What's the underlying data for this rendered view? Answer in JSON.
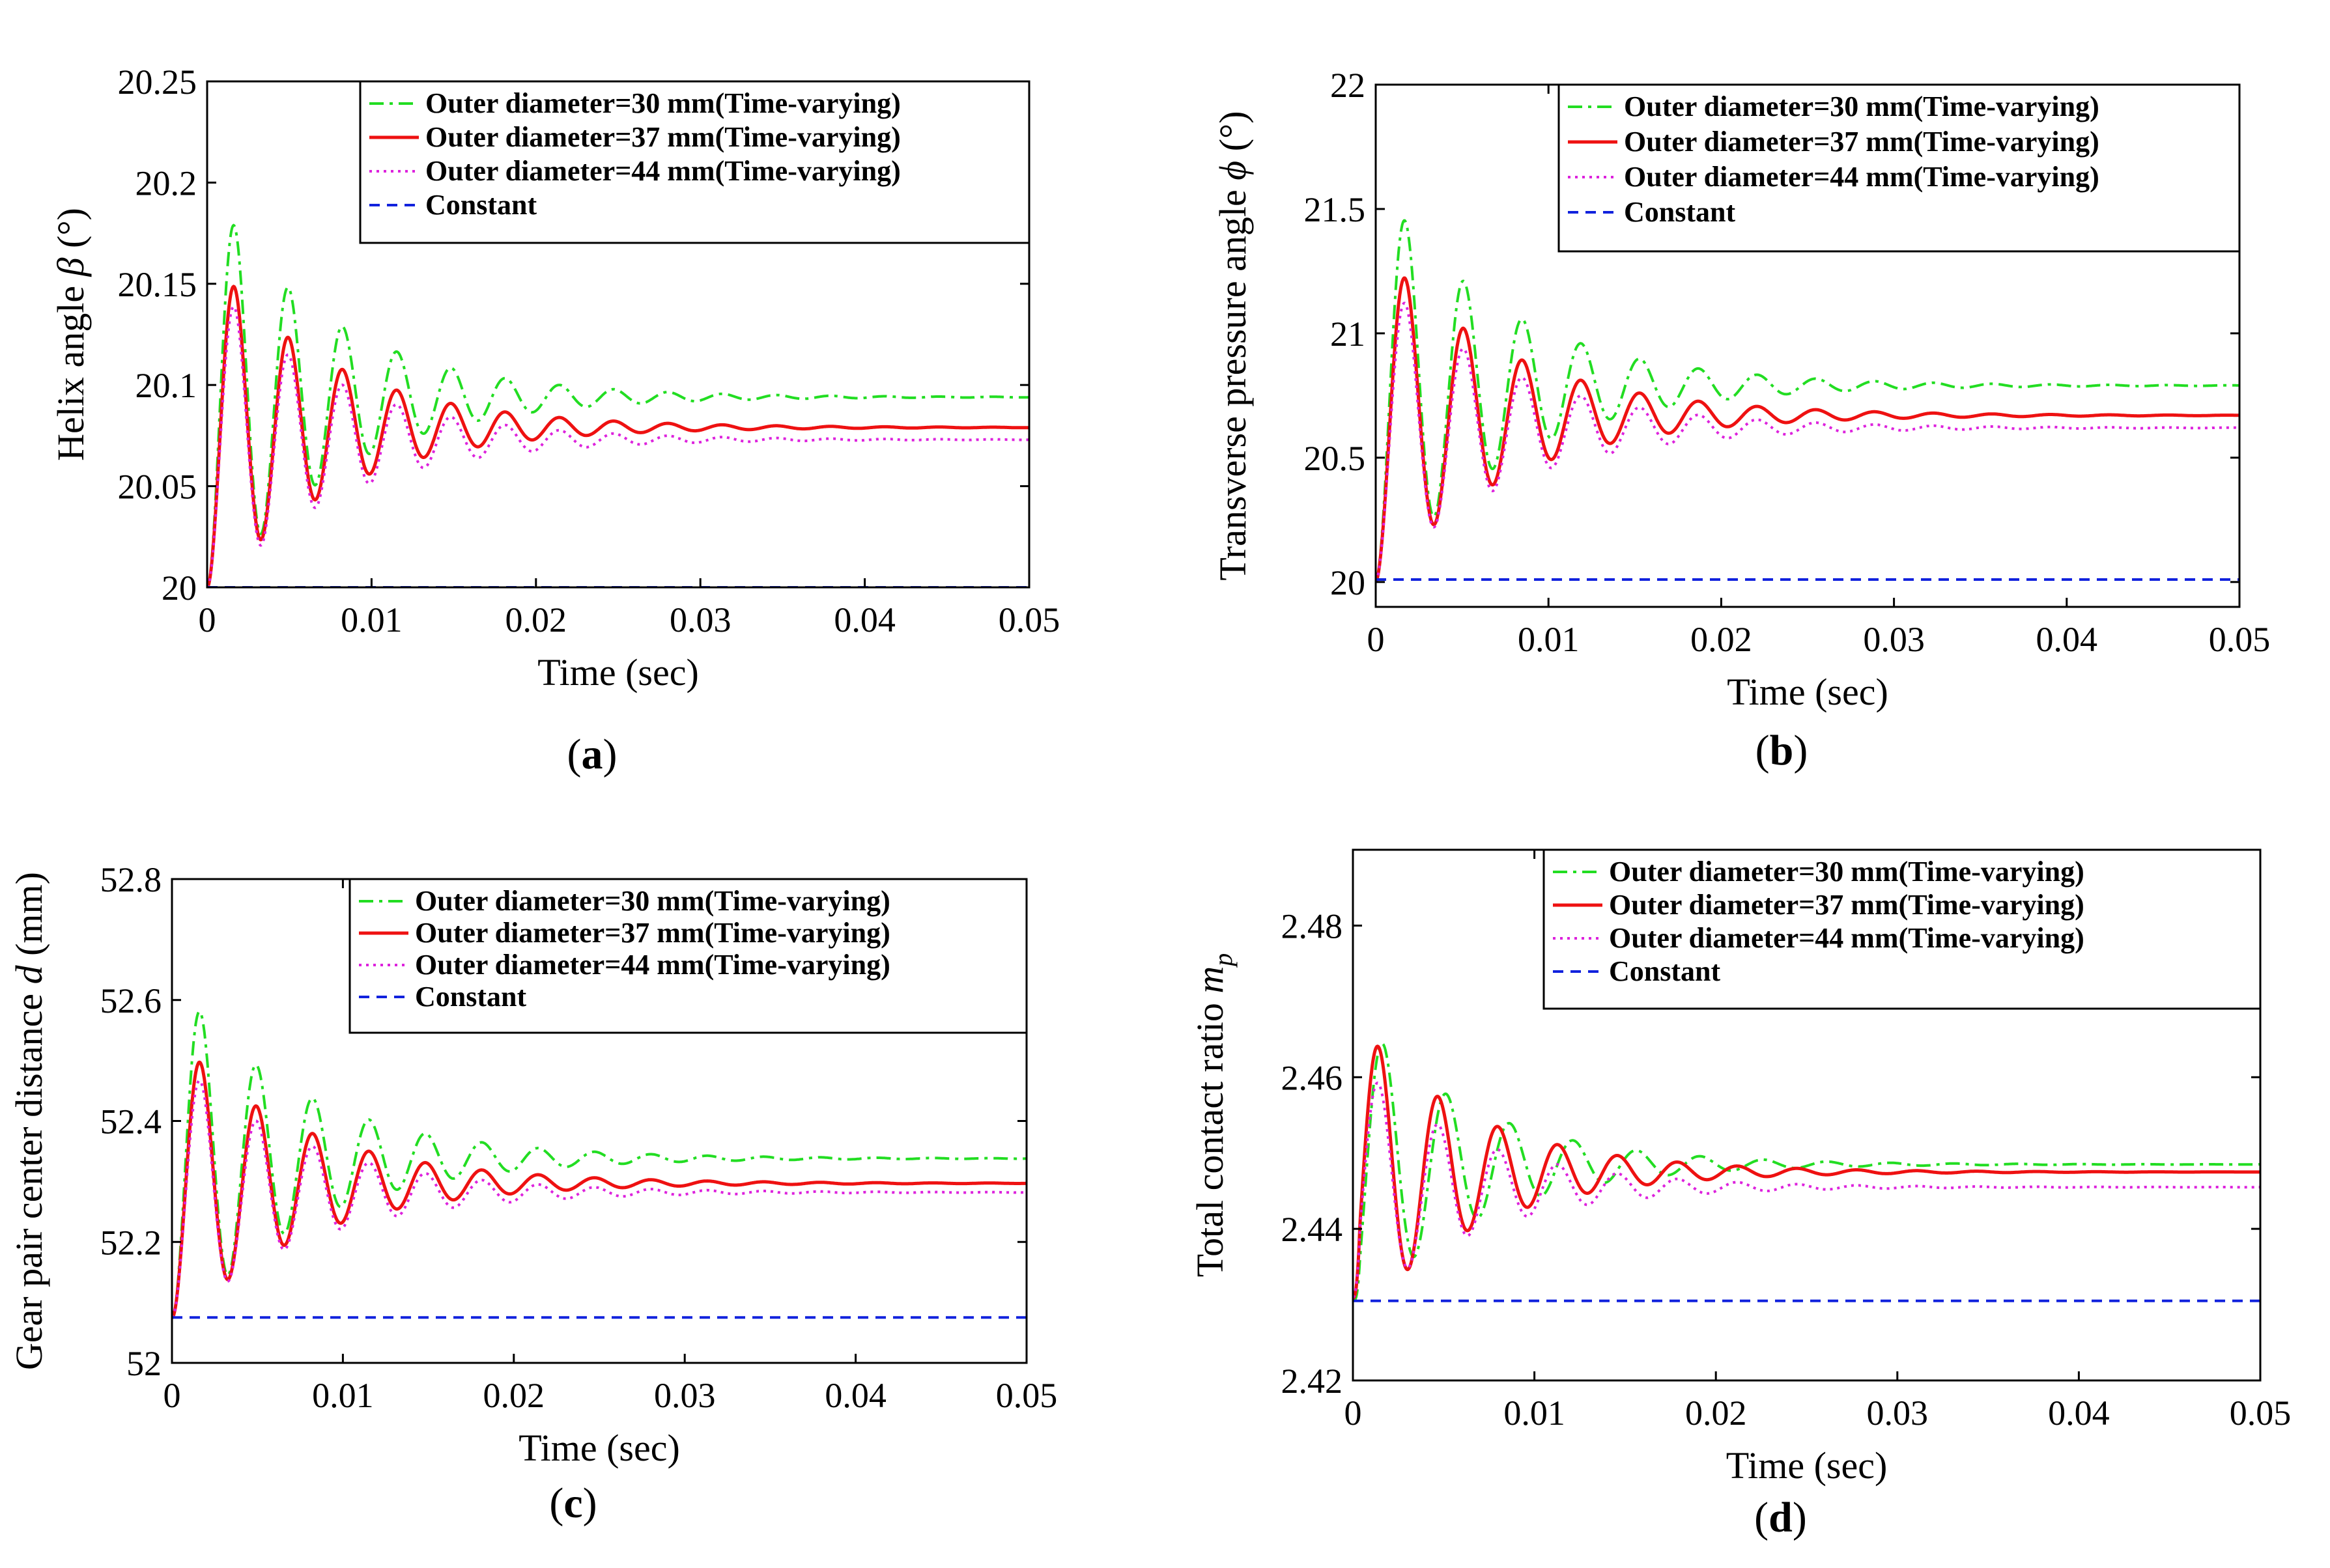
{
  "colors": {
    "series_30": "#22dd22",
    "series_37": "#ee1111",
    "series_44": "#dd22dd",
    "constant": "#1122dd"
  },
  "chart_data": [
    {
      "type": "line",
      "panel": "a",
      "caption_open": "(",
      "caption_letter": "a",
      "caption_close": ")",
      "xlabel": "Time (sec)",
      "ylabel_prefix": "Helix angle ",
      "ylabel_symbol": "β",
      "ylabel_sub": "",
      "ylabel_suffix": " (°)",
      "xlim": [
        0,
        0.05
      ],
      "ylim": [
        20,
        20.25
      ],
      "xticks": [
        0,
        0.01,
        0.02,
        0.03,
        0.04,
        0.05
      ],
      "xtick_labels": [
        "0",
        "0.01",
        "0.02",
        "0.03",
        "0.04",
        "0.05"
      ],
      "yticks": [
        20,
        20.05,
        20.1,
        20.15,
        20.2,
        20.25
      ],
      "ytick_labels": [
        "20",
        "20.05",
        "20.1",
        "20.15",
        "20.2",
        "20.25"
      ],
      "legend_position": "top-right",
      "series": [
        {
          "name": "Outer diameter=30 mm(Time-varying)",
          "color_key": "series_30",
          "style": "dashdot",
          "start": 20.0,
          "final": 20.094,
          "first_peak": 20.178,
          "tau": 0.0075,
          "period": 0.0033
        },
        {
          "name": "Outer diameter=37 mm(Time-varying)",
          "color_key": "series_37",
          "style": "solid",
          "start": 20.0,
          "final": 20.079,
          "first_peak": 20.148,
          "tau": 0.0075,
          "period": 0.0033
        },
        {
          "name": "Outer diameter=44 mm(Time-varying)",
          "color_key": "series_44",
          "style": "dotted",
          "start": 20.0,
          "final": 20.073,
          "first_peak": 20.138,
          "tau": 0.0075,
          "period": 0.0033
        },
        {
          "name": "Constant",
          "color_key": "constant",
          "style": "dashed",
          "constant": 20.0
        }
      ]
    },
    {
      "type": "line",
      "panel": "b",
      "caption_open": "(",
      "caption_letter": "b",
      "caption_close": ")",
      "xlabel": "Time (sec)",
      "ylabel_prefix": "Transverse pressure angle ",
      "ylabel_symbol": "ϕ",
      "ylabel_sub": "",
      "ylabel_suffix": " (°)",
      "xlim": [
        0,
        0.05
      ],
      "ylim": [
        19.9,
        22
      ],
      "xticks": [
        0,
        0.01,
        0.02,
        0.03,
        0.04,
        0.05
      ],
      "xtick_labels": [
        "0",
        "0.01",
        "0.02",
        "0.03",
        "0.04",
        "0.05"
      ],
      "yticks": [
        20,
        20.5,
        21,
        21.5,
        22
      ],
      "ytick_labels": [
        "20",
        "20.5",
        "21",
        "21.5",
        "22"
      ],
      "legend_position": "top-right",
      "series": [
        {
          "name": "Outer diameter=30 mm(Time-varying)",
          "color_key": "series_30",
          "style": "dashdot",
          "start": 20.0,
          "final": 20.79,
          "first_peak": 21.45,
          "tau": 0.0075,
          "period": 0.0034
        },
        {
          "name": "Outer diameter=37 mm(Time-varying)",
          "color_key": "series_37",
          "style": "solid",
          "start": 20.0,
          "final": 20.67,
          "first_peak": 21.22,
          "tau": 0.0075,
          "period": 0.0034
        },
        {
          "name": "Outer diameter=44 mm(Time-varying)",
          "color_key": "series_44",
          "style": "dotted",
          "start": 20.0,
          "final": 20.62,
          "first_peak": 21.12,
          "tau": 0.0075,
          "period": 0.0034
        },
        {
          "name": "Constant",
          "color_key": "constant",
          "style": "dashed",
          "constant": 20.01
        }
      ]
    },
    {
      "type": "line",
      "panel": "c",
      "caption_open": "(",
      "caption_letter": "c",
      "caption_close": ")",
      "xlabel": "Time (sec)",
      "ylabel_prefix": "Gear pair center distance ",
      "ylabel_symbol": "d",
      "ylabel_sub": "",
      "ylabel_suffix": " (mm)",
      "xlim": [
        0,
        0.05
      ],
      "ylim": [
        52,
        52.8
      ],
      "xticks": [
        0,
        0.01,
        0.02,
        0.03,
        0.04,
        0.05
      ],
      "xtick_labels": [
        "0",
        "0.01",
        "0.02",
        "0.03",
        "0.04",
        "0.05"
      ],
      "yticks": [
        52,
        52.2,
        52.4,
        52.6,
        52.8
      ],
      "ytick_labels": [
        "52",
        "52.2",
        "52.4",
        "52.6",
        "52.8"
      ],
      "legend_position": "top-right",
      "series": [
        {
          "name": "Outer diameter=30 mm(Time-varying)",
          "color_key": "series_30",
          "style": "dashdot",
          "start": 52.075,
          "final": 52.338,
          "first_peak": 52.578,
          "tau": 0.0075,
          "period": 0.0033
        },
        {
          "name": "Outer diameter=37 mm(Time-varying)",
          "color_key": "series_37",
          "style": "solid",
          "start": 52.075,
          "final": 52.297,
          "first_peak": 52.495,
          "tau": 0.0075,
          "period": 0.0033
        },
        {
          "name": "Outer diameter=44 mm(Time-varying)",
          "color_key": "series_44",
          "style": "dotted",
          "start": 52.075,
          "final": 52.282,
          "first_peak": 52.465,
          "tau": 0.0075,
          "period": 0.0033
        },
        {
          "name": "Constant",
          "color_key": "constant",
          "style": "dashed",
          "constant": 52.075
        }
      ]
    },
    {
      "type": "line",
      "panel": "d",
      "caption_open": "(",
      "caption_letter": "d",
      "caption_close": ")",
      "xlabel": "Time (sec)",
      "ylabel_prefix": "Total contact ratio ",
      "ylabel_symbol": "m",
      "ylabel_sub": "p",
      "ylabel_suffix": "",
      "xlim": [
        0,
        0.05
      ],
      "ylim": [
        2.42,
        2.49
      ],
      "xticks": [
        0,
        0.01,
        0.02,
        0.03,
        0.04,
        0.05
      ],
      "xtick_labels": [
        "0",
        "0.01",
        "0.02",
        "0.03",
        "0.04",
        "0.05"
      ],
      "yticks": [
        2.42,
        2.44,
        2.46,
        2.48
      ],
      "ytick_labels": [
        "2.42",
        "2.44",
        "2.46",
        "2.48"
      ],
      "legend_position": "top-right",
      "series": [
        {
          "name": "Outer diameter=30 mm(Time-varying)",
          "color_key": "series_30",
          "style": "dashdot",
          "start": 2.431,
          "final": 2.4485,
          "amp": 0.0205,
          "tau": 0.0065,
          "period": 0.0035,
          "phase": 0.00165
        },
        {
          "name": "Outer diameter=37 mm(Time-varying)",
          "color_key": "series_37",
          "style": "solid",
          "start": 2.431,
          "final": 2.4475,
          "amp": 0.0205,
          "tau": 0.0065,
          "period": 0.0033,
          "phase": 0.0014
        },
        {
          "name": "Outer diameter=44 mm(Time-varying)",
          "color_key": "series_44",
          "style": "dotted",
          "start": 2.431,
          "final": 2.4455,
          "amp": 0.017,
          "tau": 0.0065,
          "period": 0.0033,
          "phase": 0.0014
        },
        {
          "name": "Constant",
          "color_key": "constant",
          "style": "dashed",
          "constant": 2.4305
        }
      ]
    }
  ]
}
